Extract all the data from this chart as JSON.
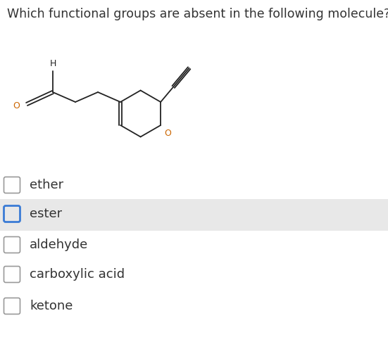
{
  "title": "Which functional groups are absent in the following molecule?",
  "title_fontsize": 12.5,
  "options": [
    "ether",
    "ester",
    "aldehyde",
    "carboxylic acid",
    "ketone"
  ],
  "highlighted_option": 1,
  "highlight_bg": "#e8e8e8",
  "highlight_border": "#3a7bd5",
  "checkbox_color_normal": "#999999",
  "bg_color": "#ffffff",
  "text_color": "#333333",
  "option_fontsize": 13,
  "mol_color": "#222222",
  "o_color": "#cc6600",
  "h_color": "#222222"
}
